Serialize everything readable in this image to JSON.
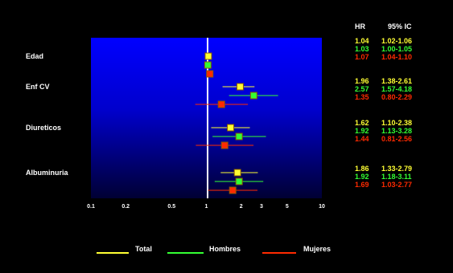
{
  "colors": {
    "background": "#000000",
    "total": "#ffff33",
    "hombres": "#33ff33",
    "mujeres": "#ff2a00",
    "plot_top": "#0000ff",
    "plot_bottom": "#000033"
  },
  "headers": {
    "hr": "HR",
    "ci": "95% IC"
  },
  "legend": {
    "total": "Total",
    "hombres": "Hombres",
    "mujeres": "Mujeres"
  },
  "chart_data": {
    "type": "forest",
    "x_scale": "log",
    "xlim": [
      0.1,
      10
    ],
    "reference_line": 1,
    "x_ticks": [
      "0.1",
      "0.2",
      "0.5",
      "1",
      "2",
      "3",
      "5",
      "10"
    ],
    "groups": [
      "Edad",
      "Enf CV",
      "Diureticos",
      "Albuminuria"
    ],
    "series": [
      {
        "name": "Total",
        "values": [
          {
            "hr": 1.04,
            "lo": 1.02,
            "hi": 1.06,
            "hr_text": "1.04",
            "ci_text": "1.02-1.06"
          },
          {
            "hr": 1.96,
            "lo": 1.38,
            "hi": 2.61,
            "hr_text": "1.96",
            "ci_text": "1.38-2.61"
          },
          {
            "hr": 1.62,
            "lo": 1.1,
            "hi": 2.38,
            "hr_text": "1.62",
            "ci_text": "1.10-2.38"
          },
          {
            "hr": 1.86,
            "lo": 1.33,
            "hi": 2.79,
            "hr_text": "1.86",
            "ci_text": "1.33-2.79"
          }
        ]
      },
      {
        "name": "Hombres",
        "values": [
          {
            "hr": 1.03,
            "lo": 1.0,
            "hi": 1.05,
            "hr_text": "1.03",
            "ci_text": "1.00-1.05"
          },
          {
            "hr": 2.57,
            "lo": 1.57,
            "hi": 4.18,
            "hr_text": "2.57",
            "ci_text": "1.57-4.18"
          },
          {
            "hr": 1.92,
            "lo": 1.13,
            "hi": 3.28,
            "hr_text": "1.92",
            "ci_text": "1.13-3.28"
          },
          {
            "hr": 1.92,
            "lo": 1.18,
            "hi": 3.11,
            "hr_text": "1.92",
            "ci_text": "1.18-3.11"
          }
        ]
      },
      {
        "name": "Mujeres",
        "values": [
          {
            "hr": 1.07,
            "lo": 1.04,
            "hi": 1.1,
            "hr_text": "1.07",
            "ci_text": "1.04-1.10"
          },
          {
            "hr": 1.35,
            "lo": 0.8,
            "hi": 2.29,
            "hr_text": "1.35",
            "ci_text": "0.80-2.29"
          },
          {
            "hr": 1.44,
            "lo": 0.81,
            "hi": 2.56,
            "hr_text": "1.44",
            "ci_text": "0.81-2.56"
          },
          {
            "hr": 1.69,
            "lo": 1.03,
            "hi": 2.77,
            "hr_text": "1.69",
            "ci_text": "1.03-2.77"
          }
        ]
      }
    ]
  }
}
